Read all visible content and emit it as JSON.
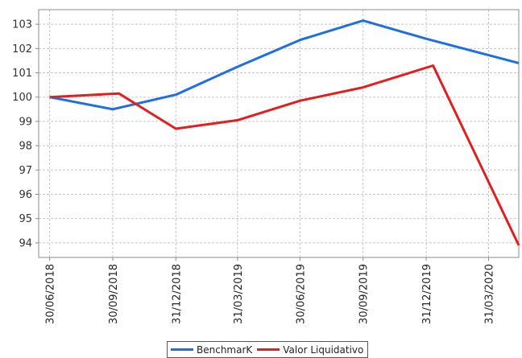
{
  "chart_data": {
    "type": "line",
    "title": "",
    "xlabel": "",
    "ylabel": "",
    "categories": [
      "30/06/2018",
      "30/09/2018",
      "31/12/2018",
      "31/03/2019",
      "30/06/2019",
      "30/09/2019",
      "31/12/2019",
      "31/03/2020"
    ],
    "series": [
      {
        "name": "BenchmarK",
        "color": "#1f6fe0",
        "points": [
          {
            "x": "30/06/2018",
            "y": 100.0
          },
          {
            "x": "30/09/2018",
            "y": 99.5
          },
          {
            "x": "31/12/2018",
            "y": 100.1
          },
          {
            "x": "31/03/2019",
            "y": 101.25
          },
          {
            "x": "30/06/2019",
            "y": 102.35
          },
          {
            "x": "30/09/2019",
            "y": 103.15
          },
          {
            "x": "31/12/2019",
            "y": 102.4
          },
          {
            "x": "14/05/2020",
            "y": 101.4
          }
        ]
      },
      {
        "name": "Valor Liquidativo",
        "color": "#e02020",
        "points": [
          {
            "x": "30/06/2018",
            "y": 100.0
          },
          {
            "x": "09/10/2018",
            "y": 100.15
          },
          {
            "x": "31/12/2018",
            "y": 98.7
          },
          {
            "x": "31/03/2019",
            "y": 99.05
          },
          {
            "x": "30/06/2019",
            "y": 99.85
          },
          {
            "x": "30/09/2019",
            "y": 100.4
          },
          {
            "x": "10/01/2020",
            "y": 101.3
          },
          {
            "x": "14/05/2020",
            "y": 93.9
          }
        ]
      }
    ],
    "yticks": [
      94,
      95,
      96,
      97,
      98,
      99,
      100,
      101,
      102,
      103
    ],
    "ylim": [
      93.4,
      103.6
    ],
    "xlim": [
      "14/06/2018",
      "14/05/2020"
    ],
    "grid": true,
    "legend_position": "bottom-center"
  }
}
